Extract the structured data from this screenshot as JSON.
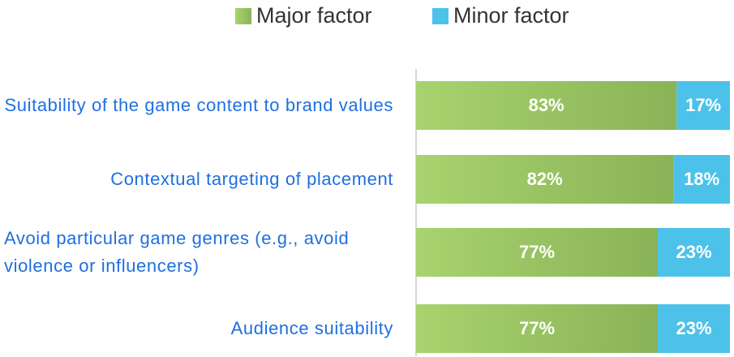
{
  "chart_data": {
    "type": "stacked-bar-horizontal",
    "categories": [
      "Suitability of the game content to brand values",
      "Contextual targeting of placement",
      "Avoid particular game genres (e.g., avoid violence or influencers)",
      "Audience suitability"
    ],
    "series": [
      {
        "name": "Major factor",
        "color": "#9cc862",
        "values": [
          83,
          82,
          77,
          77
        ],
        "value_labels": [
          "83%",
          "82%",
          "77%",
          "77%"
        ]
      },
      {
        "name": "Minor factor",
        "color": "#4cc2ea",
        "values": [
          17,
          18,
          23,
          23
        ],
        "value_labels": [
          "17%",
          "18%",
          "23%",
          "23%"
        ]
      }
    ],
    "xlim": [
      0,
      100
    ]
  }
}
